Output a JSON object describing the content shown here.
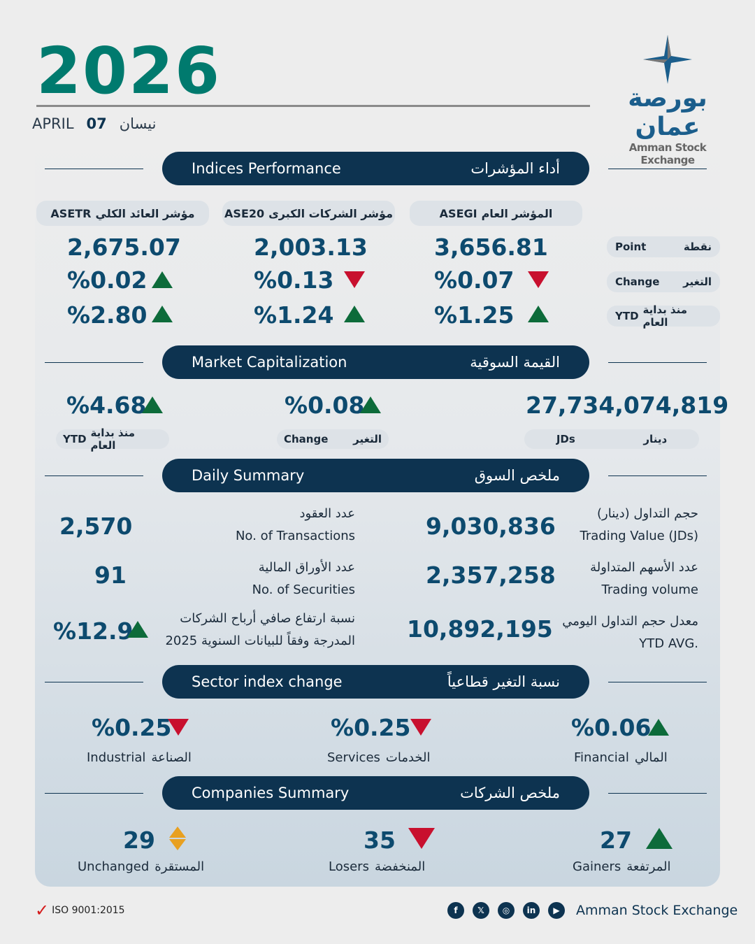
{
  "header": {
    "year": "2026",
    "month_en": "APRIL",
    "day": "07",
    "month_ar": "نيسان",
    "logo_ar": "بورصة عمان",
    "logo_en": "Amman Stock Exchange"
  },
  "colors": {
    "navy": "#0d3350",
    "teal": "#007a6e",
    "up": "#0d6b3a",
    "down": "#c8102e",
    "unchanged": "#e8a020"
  },
  "sections": {
    "indices": {
      "en": "Indices Performance",
      "ar": "أداء المؤشرات"
    },
    "cap": {
      "en": "Market Capitalization",
      "ar": "القيمة السوقية"
    },
    "daily": {
      "en": "Daily Summary",
      "ar": "ملخص السوق"
    },
    "sector": {
      "en": "Sector index change",
      "ar": "نسبة التغير قطاعياً"
    },
    "companies": {
      "en": "Companies Summary",
      "ar": "ملخص الشركات"
    }
  },
  "indices": {
    "row_labels": [
      {
        "en": "Point",
        "ar": "نقطة"
      },
      {
        "en": "Change",
        "ar": "التغير"
      },
      {
        "en": "YTD",
        "ar": "منذ بداية العام"
      }
    ],
    "columns": [
      {
        "code": "ASETR",
        "ar": "مؤشر العائد الكلي",
        "point": "2,675.07",
        "change": "%0.02",
        "change_dir": "up",
        "ytd": "%2.80",
        "ytd_dir": "up"
      },
      {
        "code": "ASE20",
        "ar": "مؤشر الشركات الكبرى",
        "point": "2,003.13",
        "change": "%0.13",
        "change_dir": "down",
        "ytd": "%1.24",
        "ytd_dir": "up"
      },
      {
        "code": "ASEGI",
        "ar": "المؤشر العام",
        "point": "3,656.81",
        "change": "%0.07",
        "change_dir": "down",
        "ytd": "%1.25",
        "ytd_dir": "up"
      }
    ]
  },
  "cap": {
    "ytd": "%4.68",
    "ytd_dir": "up",
    "ytd_en": "YTD",
    "ytd_ar": "منذ بداية العام",
    "change": "%0.08",
    "change_dir": "up",
    "change_en": "Change",
    "change_ar": "التغير",
    "value": "27,734,074,819",
    "unit_en": "JDs",
    "unit_ar": "دينار"
  },
  "daily": {
    "transactions": {
      "value": "2,570",
      "ar": "عدد العقود",
      "en": "No. of Transactions"
    },
    "securities": {
      "value": "91",
      "ar": "عدد الأوراق المالية",
      "en": "No. of Securities"
    },
    "profit": {
      "value": "%12.9",
      "dir": "up",
      "ar": "نسبة ارتفاع صافي أرباح الشركات",
      "ar2": "المدرجة وفقاً للبيانات السنوية 2025"
    },
    "trading_value": {
      "value": "9,030,836",
      "ar": "حجم التداول (دينار)",
      "en": "Trading Value (JDs)"
    },
    "trading_volume": {
      "value": "2,357,258",
      "ar": "عدد الأسهم المتداولة",
      "en": "Trading volume"
    },
    "ytd_avg": {
      "value": "10,892,195",
      "ar": "معدل حجم التداول اليومي",
      "en": "YTD AVG."
    }
  },
  "sectors": [
    {
      "value": "%0.25",
      "dir": "down",
      "en": "Industrial",
      "ar": "الصناعة"
    },
    {
      "value": "%0.25",
      "dir": "down",
      "en": "Services",
      "ar": "الخدمات"
    },
    {
      "value": "%0.06",
      "dir": "up",
      "en": "Financial",
      "ar": "المالي"
    }
  ],
  "companies": [
    {
      "value": "29",
      "dir": "unchanged",
      "en": "Unchanged",
      "ar": "المستقرة"
    },
    {
      "value": "35",
      "dir": "down",
      "en": "Losers",
      "ar": "المنخفضة"
    },
    {
      "value": "27",
      "dir": "up",
      "en": "Gainers",
      "ar": "المرتفعة"
    }
  ],
  "footer": {
    "iso": "ISO 9001:2015",
    "org": "Amman Stock Exchange",
    "social": [
      "facebook",
      "x",
      "instagram",
      "linkedin",
      "youtube"
    ]
  }
}
